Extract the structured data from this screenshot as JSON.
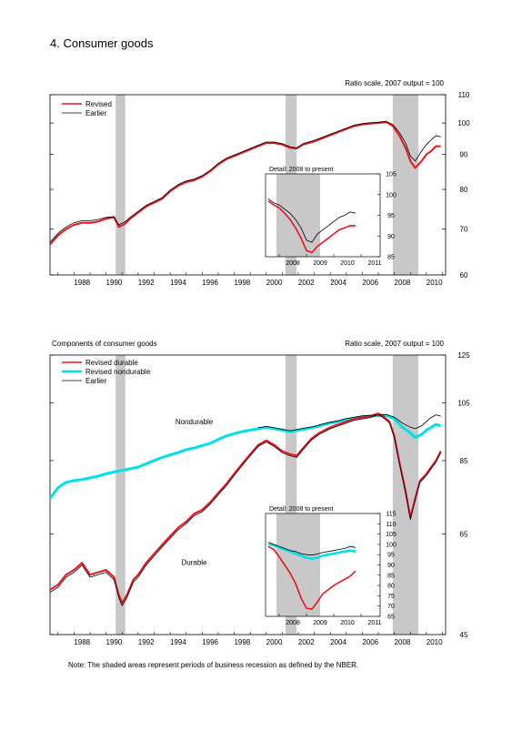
{
  "page": {
    "title": "4. Consumer goods",
    "note": "Note: The shaded areas represent periods of business recession as defined by the NBER."
  },
  "colors": {
    "revised": "#e8141c",
    "earlier": "#000000",
    "nondurable": "#00e0e8",
    "recession": "#c8c8c8",
    "overlap": "#7a1010"
  },
  "chart_data": [
    {
      "type": "line",
      "title": "",
      "scale_label": "Ratio scale, 2007 output = 100",
      "log_scale": true,
      "xlim": [
        1986.5,
        2011.2
      ],
      "ylim": [
        60,
        110
      ],
      "yticks": [
        60,
        70,
        80,
        90,
        100,
        110
      ],
      "xticks": [
        1988,
        1990,
        1992,
        1994,
        1996,
        1998,
        2000,
        2002,
        2004,
        2006,
        2008,
        2010
      ],
      "recessions": [
        [
          1990.6,
          1991.2
        ],
        [
          2001.2,
          2001.9
        ],
        [
          2007.9,
          2009.5
        ]
      ],
      "legend": {
        "placement": "top-left",
        "entries": [
          "Revised",
          "Earlier"
        ]
      },
      "series": [
        {
          "name": "Revised",
          "color": "revised",
          "x": [
            1986.5,
            1987,
            1987.5,
            1988,
            1988.5,
            1989,
            1989.5,
            1990,
            1990.5,
            1990.8,
            1991.2,
            1991.5,
            1992,
            1992.5,
            1993,
            1993.5,
            1994,
            1994.5,
            1995,
            1995.5,
            1996,
            1996.5,
            1997,
            1997.5,
            1998,
            1998.5,
            1999,
            1999.5,
            2000,
            2000.5,
            2001,
            2001.5,
            2001.9,
            2002.3,
            2003,
            2003.5,
            2004,
            2004.5,
            2005,
            2005.5,
            2006,
            2006.5,
            2007,
            2007.5,
            2007.9,
            2008.3,
            2008.7,
            2009,
            2009.3,
            2009.7,
            2010,
            2010.3,
            2010.6,
            2010.9
          ],
          "y": [
            66.5,
            68.5,
            70,
            71,
            71.5,
            71.5,
            71.8,
            72.5,
            72.8,
            70.5,
            71.3,
            72.5,
            74,
            75.5,
            76.5,
            77.5,
            79.5,
            81,
            82,
            82.5,
            83.5,
            85,
            87,
            88.5,
            89.5,
            90.5,
            91.5,
            92.5,
            93.5,
            93.5,
            93,
            92,
            91.8,
            93,
            94,
            95,
            96,
            97,
            98,
            99,
            99.5,
            99.8,
            100,
            100.3,
            99,
            96,
            92,
            88,
            86,
            88,
            90,
            91,
            92.5,
            92.5
          ]
        },
        {
          "name": "Earlier",
          "color": "earlier",
          "x": [
            1986.5,
            1987,
            1987.5,
            1988,
            1988.5,
            1989,
            1989.5,
            1990,
            1990.5,
            1990.8,
            1991.2,
            1991.5,
            1992,
            1992.5,
            1993,
            1993.5,
            1994,
            1994.5,
            1995,
            1995.5,
            1996,
            1996.5,
            1997,
            1997.5,
            1998,
            1998.5,
            1999,
            1999.5,
            2000,
            2000.5,
            2001,
            2001.5,
            2001.9,
            2002.3,
            2003,
            2003.5,
            2004,
            2004.5,
            2005,
            2005.5,
            2006,
            2006.5,
            2007,
            2007.5,
            2007.9,
            2008.3,
            2008.7,
            2009,
            2009.3,
            2009.7,
            2010,
            2010.3,
            2010.6,
            2010.9
          ],
          "y": [
            67,
            69,
            70.5,
            71.5,
            72,
            72,
            72.3,
            72.8,
            73,
            71,
            71.8,
            72.8,
            74.3,
            75.8,
            76.8,
            77.8,
            79.8,
            81.3,
            82.3,
            82.8,
            83.8,
            85.3,
            87.3,
            88.8,
            89.8,
            90.8,
            91.8,
            92.8,
            93.8,
            93.8,
            93.3,
            92.3,
            92,
            93.3,
            94.3,
            95.3,
            96.3,
            97.3,
            98.3,
            99.3,
            99.8,
            100.1,
            100.3,
            100.6,
            99.5,
            97,
            93.5,
            89.5,
            88,
            91,
            93,
            94.5,
            95.8,
            95.5
          ]
        }
      ],
      "inset": {
        "title": "Detail: 2008 to present",
        "xlim": [
          2007.5,
          2011.7
        ],
        "ylim": [
          85,
          105
        ],
        "yticks": [
          85,
          90,
          95,
          100,
          105
        ],
        "xticks": [
          2008,
          2009,
          2010,
          2011
        ],
        "recession": [
          2007.9,
          2009.5
        ],
        "series": [
          {
            "name": "Revised",
            "color": "revised",
            "x": [
              2007.6,
              2007.8,
              2008,
              2008.2,
              2008.4,
              2008.6,
              2008.8,
              2009,
              2009.2,
              2009.4,
              2009.6,
              2009.8,
              2010,
              2010.2,
              2010.4,
              2010.6,
              2010.8
            ],
            "y": [
              98.5,
              97.5,
              96.8,
              95.5,
              94,
              92,
              89.5,
              86.5,
              86,
              87.5,
              88.5,
              89.5,
              90.5,
              91.5,
              92,
              92.5,
              92.5
            ]
          },
          {
            "name": "Earlier",
            "color": "earlier",
            "x": [
              2007.6,
              2007.8,
              2008,
              2008.2,
              2008.4,
              2008.6,
              2008.8,
              2009,
              2009.2,
              2009.4,
              2009.6,
              2009.8,
              2010,
              2010.2,
              2010.4,
              2010.6,
              2010.8
            ],
            "y": [
              99,
              98,
              97.5,
              96.5,
              95.5,
              94,
              92,
              89,
              88.5,
              90.5,
              91.5,
              92.5,
              93.5,
              94.5,
              95,
              95.8,
              95.5
            ]
          }
        ]
      }
    },
    {
      "type": "line",
      "title": "Components of consumer goods",
      "scale_label": "Ratio scale, 2007 output = 100",
      "log_scale": true,
      "xlim": [
        1986.5,
        2011.2
      ],
      "ylim": [
        45,
        125
      ],
      "yticks": [
        45,
        65,
        85,
        105,
        125
      ],
      "xticks": [
        1988,
        1990,
        1992,
        1994,
        1996,
        1998,
        2000,
        2002,
        2004,
        2006,
        2008,
        2010
      ],
      "recessions": [
        [
          1990.6,
          1991.2
        ],
        [
          2001.2,
          2001.9
        ],
        [
          2007.9,
          2009.5
        ]
      ],
      "legend": {
        "placement": "top-left",
        "entries": [
          "Revised durable",
          "Revised nondurable",
          "Earlier"
        ]
      },
      "annotations": [
        {
          "text": "Nondurable",
          "x": 1995.5,
          "y": 97
        },
        {
          "text": "Durable",
          "x": 1995.5,
          "y": 58
        }
      ],
      "series": [
        {
          "name": "Revised nondurable",
          "color": "nondurable",
          "x": [
            1986.5,
            1987,
            1987.5,
            1988,
            1988.5,
            1989,
            1989.5,
            1990,
            1990.5,
            1991,
            1991.5,
            1992,
            1992.5,
            1993,
            1993.5,
            1994,
            1994.5,
            1995,
            1995.5,
            1996,
            1996.5,
            1997,
            1997.5,
            1998,
            1998.5,
            1999,
            1999.5,
            2000,
            2000.5,
            2001,
            2001.5,
            2002,
            2002.5,
            2003,
            2003.5,
            2004,
            2004.5,
            2005,
            2005.5,
            2006,
            2006.5,
            2007,
            2007.5,
            2008,
            2008.5,
            2009,
            2009.3,
            2009.7,
            2010,
            2010.3,
            2010.6,
            2010.9
          ],
          "y": [
            74,
            77,
            78.5,
            79,
            79.3,
            79.8,
            80.3,
            81,
            81.5,
            82,
            82.5,
            83,
            84,
            85,
            86,
            86.8,
            87.5,
            88.5,
            89,
            89.8,
            90.5,
            91.8,
            93,
            93.8,
            94.5,
            95,
            95.5,
            96,
            95.5,
            95,
            94.5,
            95,
            95.5,
            96,
            96.8,
            97.5,
            98,
            98.8,
            99.3,
            99.8,
            100,
            100.2,
            100.3,
            99,
            96,
            94,
            92.5,
            93.5,
            95,
            96,
            97,
            96.5
          ]
        },
        {
          "name": "Revised durable",
          "color": "revised",
          "x": [
            1986.5,
            1987,
            1987.5,
            1988,
            1988.5,
            1989,
            1989.5,
            1990,
            1990.5,
            1990.8,
            1991,
            1991.3,
            1991.7,
            1992,
            1992.5,
            1993,
            1993.5,
            1994,
            1994.5,
            1995,
            1995.5,
            1996,
            1996.5,
            1997,
            1997.5,
            1998,
            1998.5,
            1999,
            1999.5,
            2000,
            2000.5,
            2001,
            2001.5,
            2001.9,
            2002.3,
            2002.8,
            2003.3,
            2004,
            2004.5,
            2005,
            2005.5,
            2006,
            2006.5,
            2007,
            2007.3,
            2007.7,
            2008,
            2008.3,
            2008.7,
            2009,
            2009.3,
            2009.6,
            2010,
            2010.3,
            2010.6,
            2010.9
          ],
          "y": [
            53,
            54,
            56,
            57,
            58.5,
            56,
            56.5,
            57,
            55.5,
            52,
            50.5,
            52,
            55,
            56,
            58.5,
            60.5,
            62.5,
            64.5,
            66.5,
            68,
            70,
            71,
            73,
            75.5,
            78,
            81,
            84,
            87,
            90,
            91.5,
            90,
            88,
            87,
            86.5,
            89,
            92,
            94,
            96,
            97,
            98,
            99,
            99.5,
            100,
            101,
            100,
            98,
            93,
            85,
            76,
            69,
            74,
            79,
            81,
            83,
            85,
            88
          ]
        },
        {
          "name": "Earlier",
          "color": "earlier",
          "x": [
            1986.5,
            1987,
            1987.5,
            1988,
            1988.5,
            1989,
            1989.5,
            1990,
            1990.5,
            1990.8,
            1991,
            1991.3,
            1991.7,
            1992,
            1992.5,
            1993,
            1993.5,
            1994,
            1994.5,
            1995,
            1995.5,
            1996,
            1996.5,
            1997,
            1997.5,
            1998,
            1998.5,
            1999,
            1999.5,
            2000,
            2000.5,
            2001,
            2001.5,
            2001.9,
            2002.3,
            2002.8,
            2003.3,
            2004,
            2004.5,
            2005,
            2005.5,
            2006,
            2006.5,
            2007,
            2007.3,
            2007.7,
            2008,
            2008.3,
            2008.7,
            2009,
            2009.3,
            2009.6,
            2010,
            2010.3,
            2010.6,
            2010.9
          ],
          "y": [
            52.5,
            53.5,
            55.5,
            56.5,
            58,
            55.5,
            56,
            56.5,
            55,
            51.5,
            50,
            51.5,
            54.5,
            55.5,
            58,
            60,
            62,
            64,
            66,
            67.5,
            69.5,
            70.5,
            72.5,
            75,
            77.5,
            80.5,
            83.5,
            86.5,
            89.5,
            91,
            89.5,
            87.5,
            86.5,
            86,
            88.5,
            91.5,
            93.5,
            95.5,
            96.5,
            97.5,
            98.5,
            99,
            99.5,
            100.5,
            99.5,
            97.5,
            92.5,
            84.5,
            75.5,
            68.5,
            73.5,
            78.5,
            80.5,
            82.5,
            84.5,
            87.5
          ]
        },
        {
          "name": "Earlier",
          "color": "earlier",
          "x": [
            1999.5,
            2000,
            2000.5,
            2001,
            2001.5,
            2002,
            2002.5,
            2003,
            2003.5,
            2004,
            2004.5,
            2005,
            2005.5,
            2006,
            2006.5,
            2007,
            2007.5,
            2008,
            2008.5,
            2009,
            2009.3,
            2009.7,
            2010,
            2010.3,
            2010.6,
            2010.9
          ],
          "y": [
            95.8,
            96.3,
            95.8,
            95.3,
            94.8,
            95.3,
            95.8,
            96.3,
            97.1,
            97.8,
            98.3,
            99.1,
            99.6,
            100.1,
            100.3,
            100.5,
            100.6,
            99.6,
            97.5,
            96,
            95.5,
            96.5,
            98,
            99.5,
            100.5,
            100
          ]
        }
      ],
      "inset": {
        "title": "Detail: 2008 to present",
        "xlim": [
          2007.5,
          2011.7
        ],
        "ylim": [
          65,
          115
        ],
        "yticks": [
          65,
          70,
          75,
          80,
          85,
          90,
          95,
          100,
          105,
          110,
          115
        ],
        "xticks": [
          2008,
          2009,
          2010,
          2011
        ],
        "recession": [
          2007.9,
          2009.5
        ],
        "series": [
          {
            "name": "Revised nondurable",
            "color": "nondurable",
            "x": [
              2007.6,
              2007.8,
              2008,
              2008.2,
              2008.4,
              2008.6,
              2008.8,
              2009,
              2009.2,
              2009.4,
              2009.6,
              2009.8,
              2010,
              2010.2,
              2010.4,
              2010.6,
              2010.8
            ],
            "y": [
              100,
              99.5,
              98.5,
              97.5,
              96.5,
              95.5,
              94.5,
              93.5,
              93,
              93.5,
              94.5,
              95,
              95.5,
              96,
              96.5,
              97,
              96.5
            ]
          },
          {
            "name": "Revised durable",
            "color": "revised",
            "x": [
              2007.6,
              2007.8,
              2008,
              2008.2,
              2008.4,
              2008.6,
              2008.8,
              2009,
              2009.2,
              2009.4,
              2009.6,
              2009.8,
              2010,
              2010.2,
              2010.4,
              2010.6,
              2010.8
            ],
            "y": [
              99,
              97.5,
              94,
              90,
              86,
              81,
              74,
              69,
              68.5,
              72,
              76,
              78,
              80,
              81.5,
              83,
              84.5,
              87
            ]
          },
          {
            "name": "Earlier",
            "color": "earlier",
            "x": [
              2007.6,
              2007.8,
              2008,
              2008.2,
              2008.4,
              2008.6,
              2008.8,
              2009,
              2009.2,
              2009.4,
              2009.6,
              2009.8,
              2010,
              2010.2,
              2010.4,
              2010.6,
              2010.8
            ],
            "y": [
              101,
              100,
              99,
              98,
              97,
              96.5,
              95.5,
              95,
              94.8,
              95.3,
              96,
              96.5,
              97,
              97.5,
              98,
              99,
              98.5
            ]
          }
        ]
      }
    }
  ]
}
